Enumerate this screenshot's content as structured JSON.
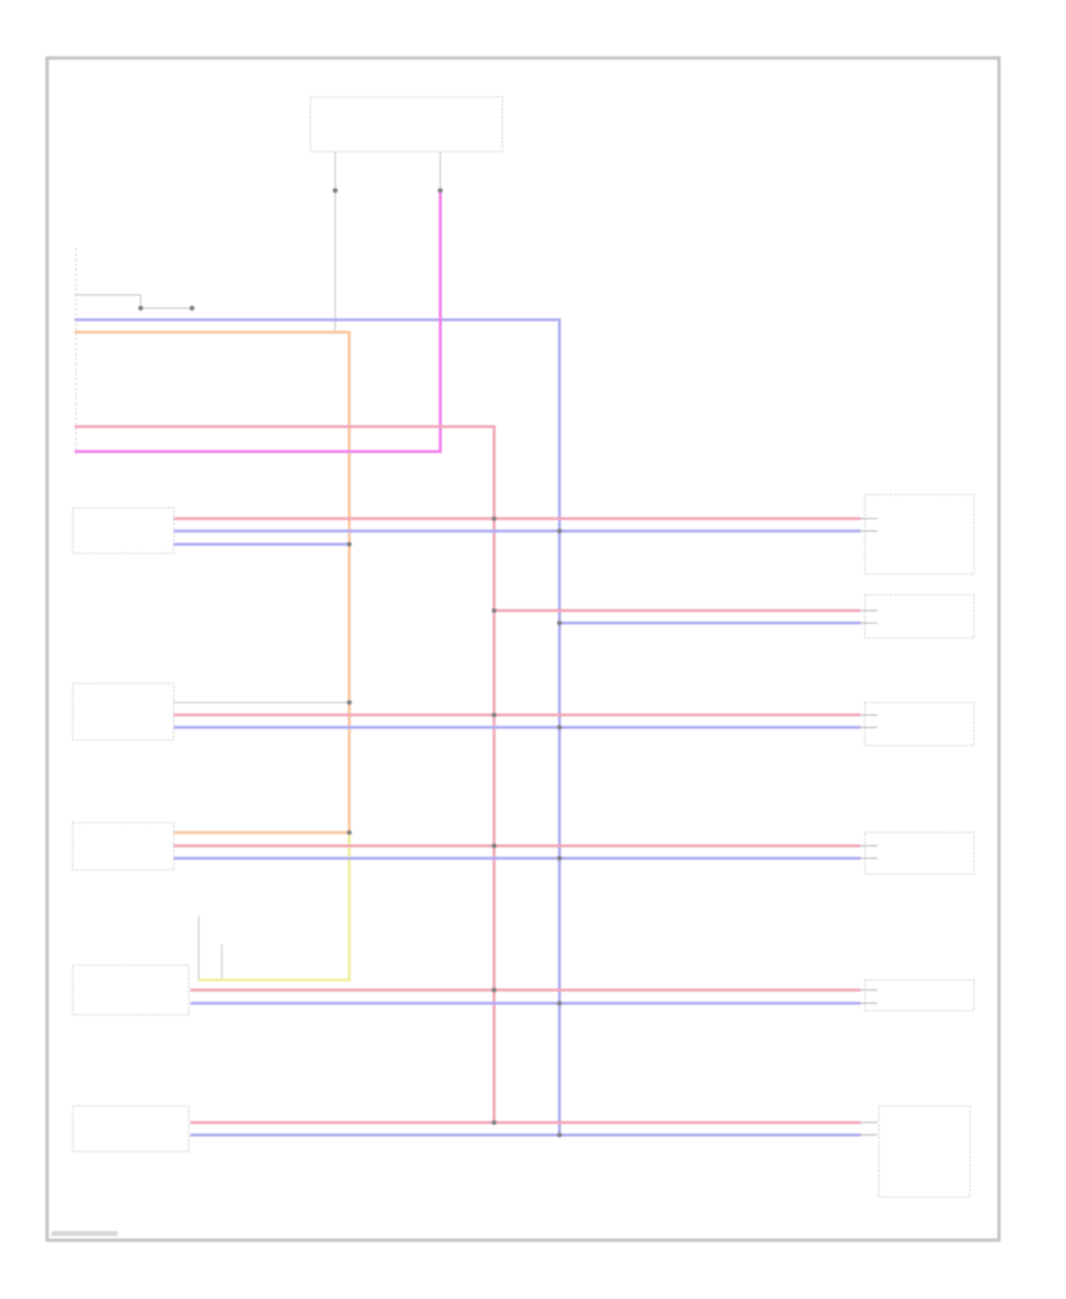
{
  "diagram": {
    "type": "wiring-diagram",
    "wire_colors": {
      "red": "#f2a6b6",
      "blue": "#acacf2",
      "magenta": "#f07cec",
      "orange": "#f8c69c",
      "yellow": "#f2ee9c",
      "gray": "#c8c8c8"
    },
    "frame_color": "#c4c4c4",
    "junction_color": "#808080"
  }
}
